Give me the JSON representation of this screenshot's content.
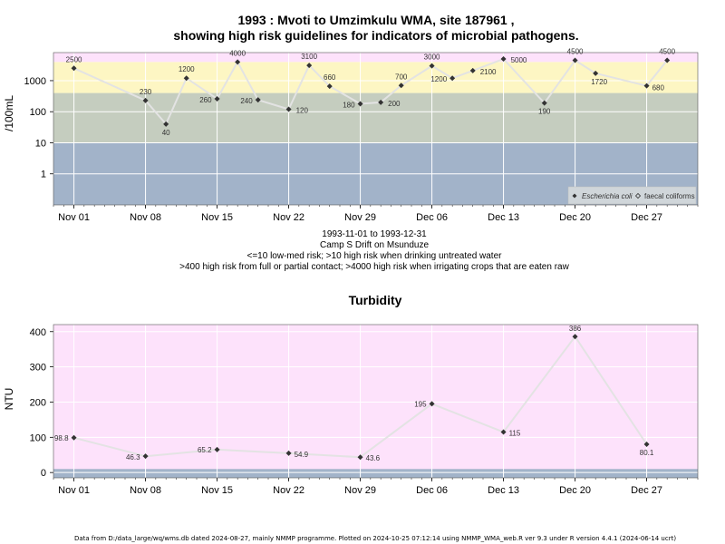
{
  "colors": {
    "band_low": "#a2b3c9",
    "band_med": "#c5cdbf",
    "band_high": "#fdf6c3",
    "band_vhigh": "#fde2fb",
    "turb_bg": "#fde2fb",
    "turb_strip": "#a2b3c9",
    "line": "#e3e3e3",
    "marker": "#333333",
    "grid": "#ffffff"
  },
  "micro": {
    "title_line1": "1993 : Mvoti to Umzimkulu WMA, site 187961 ,",
    "title_line2": "showing high risk guidelines for indicators of microbial pathogens.",
    "ylabel": "/100mL",
    "caption": [
      "1993-11-01 to 1993-12-31",
      "Camp S Drift on Msunduze",
      "<=10 low-med risk; >10 high risk when drinking untreated water",
      ">400 high risk from full or partial contact; >4000 high risk when irrigating crops that are eaten raw"
    ],
    "legend": {
      "ecoli": "Escherichia coli",
      "faecal": "faecal coliforms"
    }
  },
  "turbidity": {
    "title": "Turbidity",
    "ylabel": "NTU"
  },
  "footer": "Data from D:/data_large/wq/wms.db dated 2024-08-27, mainly NMMP programme. Plotted on 2024-10-25 07:12:14 using NMMP_WMA_web.R ver 9.3 under R version 4.4.1 (2024-06-14 ucrt)",
  "chart_data": [
    {
      "type": "line",
      "scale": "log",
      "x_range": [
        "1993-10-30",
        "1994-01-01"
      ],
      "ylim": [
        0.1,
        8000
      ],
      "y_ticks": [
        1,
        10,
        100,
        1000
      ],
      "x_ticks": [
        "Nov 01",
        "Nov 08",
        "Nov 15",
        "Nov 22",
        "Nov 29",
        "Dec 06",
        "Dec 13",
        "Dec 20",
        "Dec 27"
      ],
      "x_tick_dates": [
        "1993-11-01",
        "1993-11-08",
        "1993-11-15",
        "1993-11-22",
        "1993-11-29",
        "1993-12-06",
        "1993-12-13",
        "1993-12-20",
        "1993-12-27"
      ],
      "bands": [
        {
          "from": 0.1,
          "to": 10,
          "label": "low-med risk"
        },
        {
          "from": 10,
          "to": 400,
          "label": "high risk drinking"
        },
        {
          "from": 400,
          "to": 4000,
          "label": "high risk contact"
        },
        {
          "from": 4000,
          "to": 8000,
          "label": "high risk irrigation"
        }
      ],
      "series": [
        {
          "name": "Escherichia coli",
          "points": [
            {
              "x": "1993-11-01",
              "y": 2500,
              "label": "2500"
            },
            {
              "x": "1993-11-08",
              "y": 230,
              "label": "230"
            },
            {
              "x": "1993-11-10",
              "y": 40,
              "label": "40"
            },
            {
              "x": "1993-11-12",
              "y": 1200,
              "label": "1200"
            },
            {
              "x": "1993-11-15",
              "y": 260,
              "label": "260"
            },
            {
              "x": "1993-11-17",
              "y": 4000,
              "label": "4000"
            },
            {
              "x": "1993-11-19",
              "y": 240,
              "label": "240"
            },
            {
              "x": "1993-11-22",
              "y": 120,
              "label": "120"
            },
            {
              "x": "1993-11-24",
              "y": 3100,
              "label": "3100"
            },
            {
              "x": "1993-11-26",
              "y": 660,
              "label": "660"
            },
            {
              "x": "1993-11-29",
              "y": 180,
              "label": "180"
            },
            {
              "x": "1993-12-01",
              "y": 200,
              "label": "200"
            },
            {
              "x": "1993-12-03",
              "y": 700,
              "label": "700"
            },
            {
              "x": "1993-12-06",
              "y": 3000,
              "label": "3000"
            },
            {
              "x": "1993-12-08",
              "y": 1200,
              "label": "1200"
            },
            {
              "x": "1993-12-10",
              "y": 2100,
              "label": "2100"
            },
            {
              "x": "1993-12-13",
              "y": 5000,
              "label": "5000"
            },
            {
              "x": "1993-12-17",
              "y": 190,
              "label": "190"
            },
            {
              "x": "1993-12-20",
              "y": 4500,
              "label": "4500"
            },
            {
              "x": "1993-12-22",
              "y": 1720,
              "label": "1720"
            },
            {
              "x": "1993-12-27",
              "y": 680,
              "label": "680"
            },
            {
              "x": "1993-12-29",
              "y": 4500,
              "label": "4500"
            }
          ]
        }
      ]
    },
    {
      "type": "line",
      "x_range": [
        "1993-10-30",
        "1994-01-01"
      ],
      "ylim": [
        -15,
        420
      ],
      "y_ticks": [
        0,
        100,
        200,
        300,
        400
      ],
      "x_ticks": [
        "Nov 01",
        "Nov 08",
        "Nov 15",
        "Nov 22",
        "Nov 29",
        "Dec 06",
        "Dec 13",
        "Dec 20",
        "Dec 27"
      ],
      "x_tick_dates": [
        "1993-11-01",
        "1993-11-08",
        "1993-11-15",
        "1993-11-22",
        "1993-11-29",
        "1993-12-06",
        "1993-12-13",
        "1993-12-20",
        "1993-12-27"
      ],
      "series": [
        {
          "points": [
            {
              "x": "1993-11-01",
              "y": 98.8,
              "label": "98.8"
            },
            {
              "x": "1993-11-08",
              "y": 46.3,
              "label": "46.3"
            },
            {
              "x": "1993-11-15",
              "y": 65.2,
              "label": "65.2"
            },
            {
              "x": "1993-11-22",
              "y": 54.9,
              "label": "54.9"
            },
            {
              "x": "1993-11-29",
              "y": 43.6,
              "label": "43.6"
            },
            {
              "x": "1993-12-06",
              "y": 195,
              "label": "195"
            },
            {
              "x": "1993-12-13",
              "y": 115,
              "label": "115"
            },
            {
              "x": "1993-12-20",
              "y": 386,
              "label": "386"
            },
            {
              "x": "1993-12-27",
              "y": 80.1,
              "label": "80.1"
            }
          ]
        }
      ]
    }
  ]
}
